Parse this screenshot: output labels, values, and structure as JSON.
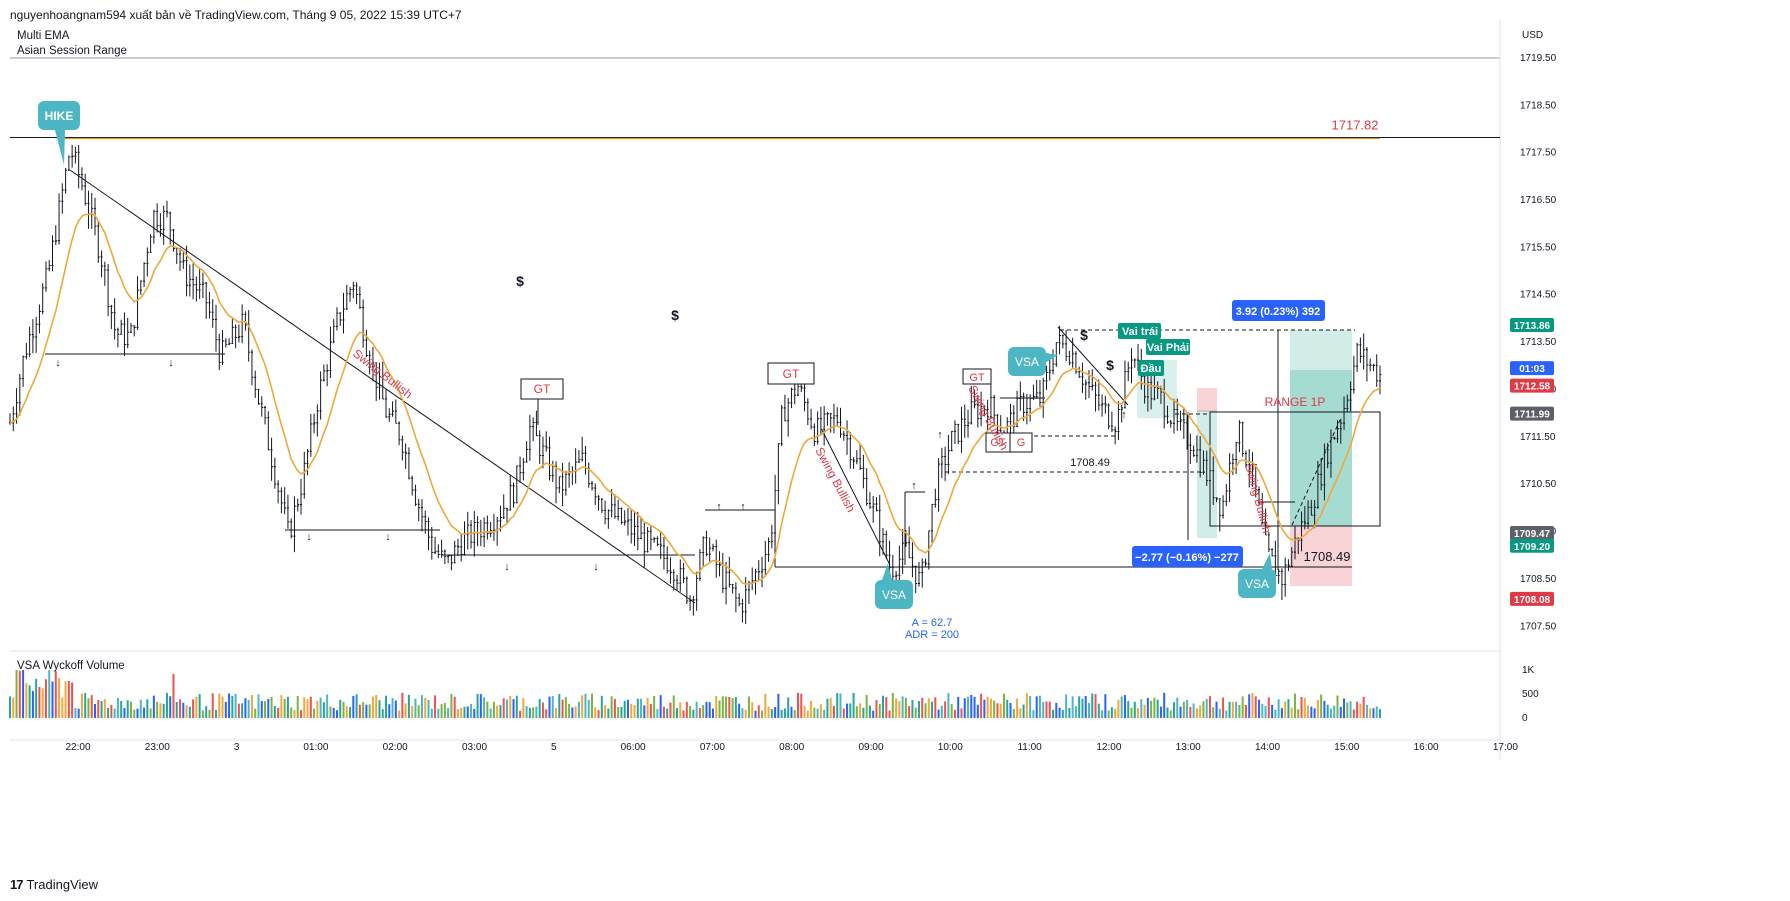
{
  "header": {
    "publish_line": "nguyenhoangnam594 xuất bản về TradingView.com, Tháng 9 05, 2022 15:39 UTC+7"
  },
  "indicators": {
    "main": [
      "Multi EMA",
      "Asian Session Range"
    ],
    "volume": "VSA Wyckoff Volume"
  },
  "logo": {
    "text": "TradingView",
    "mark": "17"
  },
  "colors": {
    "ema": "#f0a83c",
    "teal": "#4db6c4",
    "green_box": "#089981",
    "red_label": "#e03a47",
    "blue_label": "#2962ff",
    "line": "#131722"
  },
  "chart_data": {
    "type": "candlestick",
    "currency": "USD",
    "y_ticks": [
      "1719.50",
      "1718.50",
      "1717.50",
      "1716.50",
      "1715.50",
      "1714.50",
      "1713.50",
      "1712.50",
      "1711.50",
      "1710.50",
      "1709.50",
      "1708.50",
      "1707.50"
    ],
    "ylim": [
      1707.0,
      1720.3
    ],
    "x_ticks": [
      "22:00",
      "23:00",
      "3",
      "01:00",
      "02:00",
      "03:00",
      "5",
      "06:00",
      "07:00",
      "08:00",
      "09:00",
      "10:00",
      "11:00",
      "12:00",
      "13:00",
      "14:00",
      "15:00",
      "16:00",
      "17:00"
    ],
    "horizontal_level": {
      "value": 1717.82,
      "label": "1717.82"
    },
    "price_labels": [
      {
        "text": "1713.86",
        "value": 1713.86,
        "color": "#089981"
      },
      {
        "text": "01:03",
        "value": 1712.95,
        "color": "#2962ff"
      },
      {
        "text": "1712.58",
        "value": 1712.58,
        "color": "#e03a47"
      },
      {
        "text": "1711.99",
        "value": 1711.99,
        "color": "#5d606b"
      },
      {
        "text": "1709.47",
        "value": 1709.47,
        "color": "#5d606b"
      },
      {
        "text": "1709.20",
        "value": 1709.2,
        "color": "#089981"
      },
      {
        "text": "1708.08",
        "value": 1708.08,
        "color": "#e03a47"
      }
    ],
    "annotations": {
      "hike": "HIKE",
      "vsa": "VSA",
      "gt": "GT",
      "g": "G",
      "swing_bullish": "Swing Bullish",
      "vai_trai": "Vai trái",
      "vai_phai": "Vai Phải",
      "dau": "Đầu",
      "range_1p": "RANGE 1P",
      "measure_up": "3.92 (0.23%) 392",
      "measure_down": "−2.77 (−0.16%) −277",
      "level_1708": "1708.49",
      "a_value": "A = 62.7",
      "adr_value": "ADR = 200",
      "dollar": "$"
    },
    "volume_ticks": [
      "1K",
      "500",
      "0"
    ],
    "close_path": [
      [
        0,
        1711.8
      ],
      [
        0.01,
        1713.3
      ],
      [
        0.025,
        1714.9
      ],
      [
        0.04,
        1717.6
      ],
      [
        0.048,
        1716.8
      ],
      [
        0.06,
        1715.4
      ],
      [
        0.07,
        1713.7
      ],
      [
        0.08,
        1713.6
      ],
      [
        0.095,
        1716.2
      ],
      [
        0.105,
        1716.1
      ],
      [
        0.115,
        1715.0
      ],
      [
        0.13,
        1714.4
      ],
      [
        0.14,
        1713.2
      ],
      [
        0.155,
        1713.9
      ],
      [
        0.165,
        1712.3
      ],
      [
        0.175,
        1710.9
      ],
      [
        0.185,
        1709.4
      ],
      [
        0.195,
        1710.7
      ],
      [
        0.205,
        1712.4
      ],
      [
        0.218,
        1714.0
      ],
      [
        0.228,
        1714.8
      ],
      [
        0.238,
        1713.3
      ],
      [
        0.25,
        1712.0
      ],
      [
        0.26,
        1711.5
      ],
      [
        0.27,
        1710.2
      ],
      [
        0.28,
        1709.2
      ],
      [
        0.29,
        1708.8
      ],
      [
        0.3,
        1709.3
      ],
      [
        0.31,
        1709.5
      ],
      [
        0.325,
        1709.9
      ],
      [
        0.335,
        1710.4
      ],
      [
        0.345,
        1711.7
      ],
      [
        0.352,
        1711.3
      ],
      [
        0.365,
        1710.4
      ],
      [
        0.38,
        1711.0
      ],
      [
        0.395,
        1710.0
      ],
      [
        0.41,
        1709.6
      ],
      [
        0.425,
        1709.2
      ],
      [
        0.44,
        1708.8
      ],
      [
        0.452,
        1708.1
      ],
      [
        0.462,
        1709.3
      ],
      [
        0.472,
        1708.6
      ],
      [
        0.485,
        1707.9
      ],
      [
        0.495,
        1708.6
      ],
      [
        0.505,
        1709.3
      ],
      [
        0.513,
        1712.0
      ],
      [
        0.523,
        1712.6
      ],
      [
        0.535,
        1711.6
      ],
      [
        0.55,
        1711.9
      ],
      [
        0.562,
        1711.0
      ],
      [
        0.575,
        1709.8
      ],
      [
        0.585,
        1708.7
      ],
      [
        0.595,
        1709.1
      ],
      [
        0.605,
        1708.4
      ],
      [
        0.615,
        1710.5
      ],
      [
        0.625,
        1711.4
      ],
      [
        0.638,
        1712.0
      ],
      [
        0.65,
        1712.2
      ],
      [
        0.66,
        1711.6
      ],
      [
        0.672,
        1712.2
      ],
      [
        0.685,
        1712.3
      ],
      [
        0.695,
        1713.5
      ],
      [
        0.705,
        1713.3
      ],
      [
        0.715,
        1712.6
      ],
      [
        0.725,
        1712.1
      ],
      [
        0.735,
        1711.8
      ],
      [
        0.745,
        1713.3
      ],
      [
        0.755,
        1712.5
      ],
      [
        0.765,
        1712.3
      ],
      [
        0.775,
        1711.7
      ],
      [
        0.785,
        1711.4
      ],
      [
        0.795,
        1710.7
      ],
      [
        0.805,
        1710.0
      ],
      [
        0.815,
        1711.7
      ],
      [
        0.825,
        1710.7
      ],
      [
        0.835,
        1709.0
      ],
      [
        0.845,
        1708.5
      ],
      [
        0.855,
        1709.4
      ],
      [
        0.865,
        1710.1
      ],
      [
        0.875,
        1711.2
      ],
      [
        0.885,
        1712.0
      ],
      [
        0.895,
        1713.3
      ],
      [
        0.91,
        1712.8
      ]
    ]
  }
}
